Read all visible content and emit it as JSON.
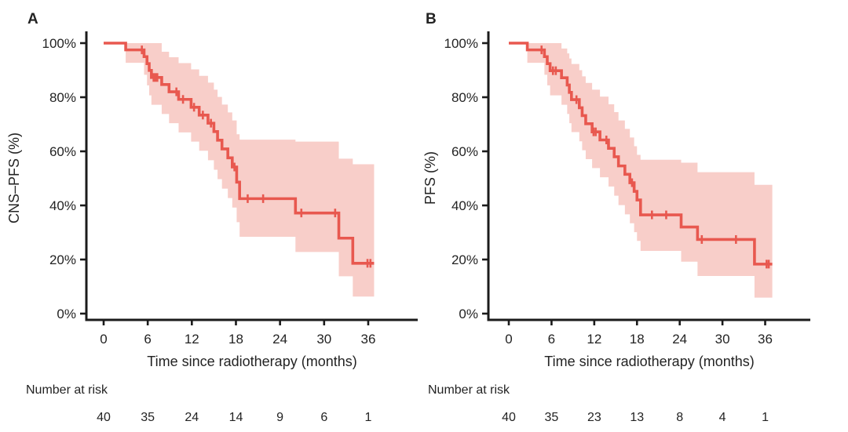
{
  "figure_title": "",
  "chart_data": [
    {
      "type": "line",
      "subtype": "kaplan-meier-step-with-ci-band",
      "panel_label": "A",
      "title": "",
      "xlabel": "Time since radiotherapy (months)",
      "ylabel": "CNS–PFS (%)",
      "xlim": [
        0,
        42
      ],
      "ylim": [
        0,
        100
      ],
      "xticks": [
        0,
        6,
        12,
        18,
        24,
        30,
        36
      ],
      "ytick_labels": [
        "0%",
        "20%",
        "40%",
        "60%",
        "80%",
        "100%"
      ],
      "ytick_values": [
        0,
        20,
        40,
        60,
        80,
        100
      ],
      "grid": false,
      "legend": "none",
      "line_color": "#e8584f",
      "band_color": "#f8cec9",
      "end_time": 36.8,
      "steps": [
        [
          0,
          100
        ],
        [
          3.0,
          97.5
        ],
        [
          5.5,
          95.0
        ],
        [
          5.9,
          92.4
        ],
        [
          6.2,
          89.9
        ],
        [
          6.5,
          87.3
        ],
        [
          7.9,
          84.7
        ],
        [
          8.9,
          82.0
        ],
        [
          10.2,
          79.2
        ],
        [
          11.9,
          76.3
        ],
        [
          13.0,
          73.4
        ],
        [
          14.2,
          70.4
        ],
        [
          15.0,
          67.3
        ],
        [
          15.5,
          64.1
        ],
        [
          16.1,
          60.9
        ],
        [
          16.9,
          57.6
        ],
        [
          17.5,
          54.2
        ],
        [
          18.1,
          48.6
        ],
        [
          18.5,
          42.5
        ],
        [
          26.1,
          37.2
        ],
        [
          32.0,
          27.9
        ],
        [
          33.9,
          18.6
        ]
      ],
      "censors": [
        [
          5.2,
          97.5
        ],
        [
          6.8,
          87.3
        ],
        [
          7.05,
          87.3
        ],
        [
          7.3,
          87.3
        ],
        [
          9.9,
          82.0
        ],
        [
          10.8,
          79.2
        ],
        [
          12.3,
          76.3
        ],
        [
          13.5,
          73.4
        ],
        [
          14.6,
          70.4
        ],
        [
          17.8,
          54.2
        ],
        [
          19.6,
          42.5
        ],
        [
          21.7,
          42.5
        ],
        [
          26.9,
          37.2
        ],
        [
          31.5,
          37.2
        ],
        [
          35.9,
          18.6
        ],
        [
          36.3,
          18.6
        ]
      ],
      "ci_steps": [
        [
          0,
          100,
          100
        ],
        [
          3.0,
          92.7,
          100
        ],
        [
          5.5,
          88.3,
          100
        ],
        [
          5.9,
          84.4,
          100
        ],
        [
          6.2,
          80.7,
          100
        ],
        [
          6.5,
          77.2,
          100
        ],
        [
          7.9,
          73.8,
          96.8
        ],
        [
          8.9,
          70.4,
          94.8
        ],
        [
          10.2,
          67.0,
          92.6
        ],
        [
          11.9,
          63.6,
          90.3
        ],
        [
          13.0,
          60.2,
          87.9
        ],
        [
          14.2,
          56.7,
          85.4
        ],
        [
          15.0,
          53.2,
          82.8
        ],
        [
          15.5,
          49.7,
          80.1
        ],
        [
          16.1,
          46.2,
          77.3
        ],
        [
          16.9,
          42.7,
          74.4
        ],
        [
          17.5,
          39.2,
          71.4
        ],
        [
          18.1,
          33.8,
          66.3
        ],
        [
          18.5,
          28.4,
          64.3
        ],
        [
          26.1,
          22.8,
          63.6
        ],
        [
          32.0,
          13.8,
          57.3
        ],
        [
          33.9,
          6.3,
          55.2
        ]
      ],
      "number_at_risk": {
        "header": "Number at risk",
        "times": [
          0,
          6,
          12,
          18,
          24,
          30,
          36
        ],
        "values": [
          40,
          35,
          24,
          14,
          9,
          6,
          1
        ]
      }
    },
    {
      "type": "line",
      "subtype": "kaplan-meier-step-with-ci-band",
      "panel_label": "B",
      "title": "",
      "xlabel": "Time since radiotherapy (months)",
      "ylabel": "PFS (%)",
      "xlim": [
        0,
        42
      ],
      "ylim": [
        0,
        100
      ],
      "xticks": [
        0,
        6,
        12,
        18,
        24,
        30,
        36
      ],
      "ytick_labels": [
        "0%",
        "20%",
        "40%",
        "60%",
        "80%",
        "100%"
      ],
      "ytick_values": [
        0,
        20,
        40,
        60,
        80,
        100
      ],
      "grid": false,
      "legend": "none",
      "line_color": "#e8584f",
      "band_color": "#f8cec9",
      "end_time": 37.0,
      "steps": [
        [
          0,
          100
        ],
        [
          2.6,
          97.5
        ],
        [
          5.0,
          95.0
        ],
        [
          5.4,
          92.4
        ],
        [
          5.8,
          89.8
        ],
        [
          7.4,
          87.2
        ],
        [
          8.2,
          84.5
        ],
        [
          8.5,
          81.8
        ],
        [
          8.8,
          79.1
        ],
        [
          9.9,
          76.1
        ],
        [
          10.3,
          73.2
        ],
        [
          10.8,
          70.2
        ],
        [
          11.7,
          67.2
        ],
        [
          12.8,
          64.2
        ],
        [
          14.0,
          61.1
        ],
        [
          14.8,
          58.0
        ],
        [
          15.4,
          54.6
        ],
        [
          16.3,
          51.5
        ],
        [
          17.0,
          48.4
        ],
        [
          17.6,
          45.2
        ],
        [
          18.0,
          42.0
        ],
        [
          18.5,
          36.5
        ],
        [
          24.2,
          32.0
        ],
        [
          26.5,
          27.4
        ],
        [
          34.5,
          18.3
        ]
      ],
      "censors": [
        [
          4.6,
          97.5
        ],
        [
          6.2,
          89.8
        ],
        [
          6.6,
          89.8
        ],
        [
          9.5,
          79.1
        ],
        [
          11.9,
          67.2
        ],
        [
          12.2,
          67.2
        ],
        [
          13.7,
          64.2
        ],
        [
          17.3,
          48.4
        ],
        [
          20.1,
          36.5
        ],
        [
          22.1,
          36.5
        ],
        [
          27.1,
          27.4
        ],
        [
          31.9,
          27.4
        ],
        [
          36.2,
          18.3
        ],
        [
          36.5,
          18.3
        ]
      ],
      "ci_steps": [
        [
          0,
          100,
          100
        ],
        [
          2.6,
          92.7,
          100
        ],
        [
          5.0,
          88.3,
          100
        ],
        [
          5.4,
          84.4,
          100
        ],
        [
          5.8,
          80.7,
          100
        ],
        [
          7.4,
          77.2,
          98.0
        ],
        [
          8.2,
          73.8,
          96.2
        ],
        [
          8.5,
          70.4,
          94.3
        ],
        [
          8.8,
          67.1,
          92.3
        ],
        [
          9.9,
          63.7,
          90.0
        ],
        [
          10.3,
          60.4,
          87.7
        ],
        [
          10.8,
          57.1,
          85.3
        ],
        [
          11.7,
          53.8,
          82.8
        ],
        [
          12.8,
          50.4,
          80.2
        ],
        [
          14.0,
          47.0,
          77.4
        ],
        [
          14.8,
          43.6,
          74.5
        ],
        [
          15.4,
          40.1,
          71.4
        ],
        [
          16.3,
          36.7,
          68.3
        ],
        [
          17.0,
          33.4,
          65.1
        ],
        [
          17.6,
          30.1,
          61.9
        ],
        [
          18.0,
          26.9,
          58.7
        ],
        [
          18.5,
          23.2,
          56.9
        ],
        [
          24.2,
          19.2,
          55.8
        ],
        [
          26.5,
          13.9,
          52.3
        ],
        [
          34.5,
          5.9,
          47.6
        ]
      ],
      "number_at_risk": {
        "header": "Number at risk",
        "times": [
          0,
          6,
          12,
          18,
          24,
          30,
          36
        ],
        "values": [
          40,
          35,
          23,
          13,
          8,
          4,
          1
        ]
      }
    }
  ],
  "colors": {
    "curve": "#e8584f",
    "confidence_band": "#f8cec9",
    "axis": "#1b1b1b",
    "text": "#232323"
  }
}
